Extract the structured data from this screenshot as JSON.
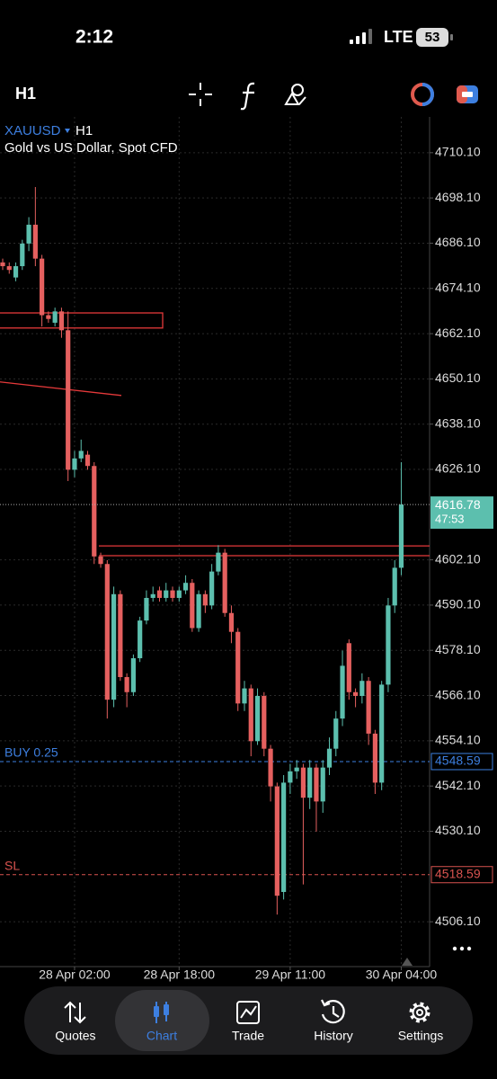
{
  "status_bar": {
    "time": "2:12",
    "network": "LTE",
    "battery": "53"
  },
  "toolbar": {
    "timeframe": "H1"
  },
  "chart_data": {
    "type": "candlestick",
    "symbol": "XAUUSD",
    "timeframe": "H1",
    "description": "Gold vs US Dollar, Spot CFD",
    "categories": [
      null,
      null,
      null,
      null,
      null,
      null,
      null,
      null,
      null,
      null,
      null,
      "28 Apr 02:00",
      null,
      null,
      null,
      null,
      null,
      null,
      null,
      null,
      null,
      null,
      null,
      null,
      null,
      null,
      null,
      "28 Apr 18:00",
      null,
      null,
      null,
      null,
      null,
      null,
      null,
      null,
      null,
      null,
      null,
      null,
      null,
      null,
      null,
      null,
      "29 Apr 11:00",
      null,
      null,
      null,
      null,
      null,
      null,
      null,
      null,
      null,
      null,
      null,
      null,
      null,
      null,
      null,
      null,
      "30 Apr 04:00"
    ],
    "open": [
      4681,
      4680,
      4677,
      4680,
      4686,
      4691,
      4682,
      4667,
      4665,
      4668,
      4663,
      4626,
      4629,
      4630,
      4627,
      4603,
      4601,
      4565,
      4593,
      4571,
      4567,
      4576,
      4586,
      4592,
      4594,
      4592,
      4594,
      4592,
      4594,
      4596,
      4584,
      4593,
      4590,
      4599,
      4604,
      4588,
      4583,
      4564,
      4568,
      4554,
      4566,
      4552,
      4542,
      4514,
      4543,
      4546,
      4547,
      4539,
      4547,
      4538,
      4547,
      4552,
      4560,
      4580,
      4567,
      4566,
      4570,
      4556,
      4543,
      4569,
      4590,
      4600
    ],
    "high": [
      4682,
      4681,
      4681,
      4687,
      4693,
      4701,
      4683,
      4668,
      4669,
      4669,
      4668,
      4631,
      4634,
      4631,
      4628,
      4604,
      4602,
      4595,
      4594,
      4572,
      4577,
      4587,
      4594,
      4595,
      4595,
      4596,
      4595,
      4595,
      4598,
      4597,
      4594,
      4594,
      4601,
      4606,
      4605,
      4590,
      4584,
      4570,
      4569,
      4568,
      4567,
      4553,
      4543,
      4545,
      4548,
      4549,
      4548,
      4549,
      4548,
      4549,
      4555,
      4562,
      4578,
      4581,
      4568,
      4572,
      4571,
      4557,
      4570,
      4592,
      4602,
      4628
    ],
    "low": [
      4679,
      4678,
      4676,
      4679,
      4684,
      4680,
      4664,
      4665,
      4664,
      4661,
      4623,
      4624,
      4628,
      4626,
      4601,
      4600,
      4560,
      4563,
      4570,
      4563,
      4566,
      4575,
      4585,
      4591,
      4591,
      4591,
      4591,
      4591,
      4593,
      4583,
      4583,
      4588,
      4589,
      4598,
      4587,
      4580,
      4562,
      4562,
      4550,
      4553,
      4550,
      4538,
      4508,
      4512,
      4540,
      4544,
      4516,
      4536,
      4530,
      4535,
      4545,
      4550,
      4558,
      4565,
      4563,
      4564,
      4553,
      4540,
      4541,
      4567,
      4588,
      4598
    ],
    "close": [
      4680,
      4679,
      4680,
      4686,
      4691,
      4682,
      4667,
      4666,
      4668,
      4663,
      4626,
      4629,
      4631,
      4627,
      4603,
      4601,
      4565,
      4593,
      4571,
      4567,
      4576,
      4586,
      4592,
      4593,
      4592,
      4594,
      4592,
      4594,
      4596,
      4584,
      4593,
      4590,
      4599,
      4604,
      4588,
      4583,
      4564,
      4568,
      4554,
      4566,
      4552,
      4542,
      4513,
      4543,
      4546,
      4547,
      4539,
      4547,
      4538,
      4547,
      4552,
      4560,
      4574,
      4567,
      4566,
      4570,
      4556,
      4543,
      4569,
      4590,
      4600,
      4616.78
    ],
    "up_color": "#5cbfae",
    "down_color": "#e5605f",
    "ylim": [
      4494.2,
      4719.6
    ],
    "yticks": [
      {
        "value": 4710.1,
        "label": "4710.10"
      },
      {
        "value": 4698.1,
        "label": "4698.10"
      },
      {
        "value": 4686.1,
        "label": "4686.10"
      },
      {
        "value": 4674.1,
        "label": "4674.10"
      },
      {
        "value": 4662.1,
        "label": "4662.10"
      },
      {
        "value": 4650.1,
        "label": "4650.10"
      },
      {
        "value": 4638.1,
        "label": "4638.10"
      },
      {
        "value": 4626.1,
        "label": "4626.10"
      },
      {
        "value": 4602.1,
        "label": "4602.10"
      },
      {
        "value": 4590.1,
        "label": "4590.10"
      },
      {
        "value": 4578.1,
        "label": "4578.10"
      },
      {
        "value": 4566.1,
        "label": "4566.10"
      },
      {
        "value": 4554.1,
        "label": "4554.10"
      },
      {
        "value": 4542.1,
        "label": "4542.10"
      },
      {
        "value": 4530.1,
        "label": "4530.10"
      },
      {
        "value": 4506.1,
        "label": "4506.10"
      }
    ],
    "grid": true,
    "current_price": {
      "value": 4616.78,
      "countdown": "47:53"
    },
    "orders": [
      {
        "name": "BUY 0.25",
        "price": 4548.59,
        "color": "#3d7fe0"
      },
      {
        "name": "SL",
        "price": 4518.59,
        "color": "#d9534f"
      }
    ],
    "levels": [
      4605.8,
      4603.2
    ],
    "zone": [
      4667.6,
      4663.6
    ],
    "trendline": [
      4649.3,
      4645.7
    ]
  },
  "tab_bar": {
    "tabs": [
      "Quotes",
      "Chart",
      "Trade",
      "History",
      "Settings"
    ]
  }
}
